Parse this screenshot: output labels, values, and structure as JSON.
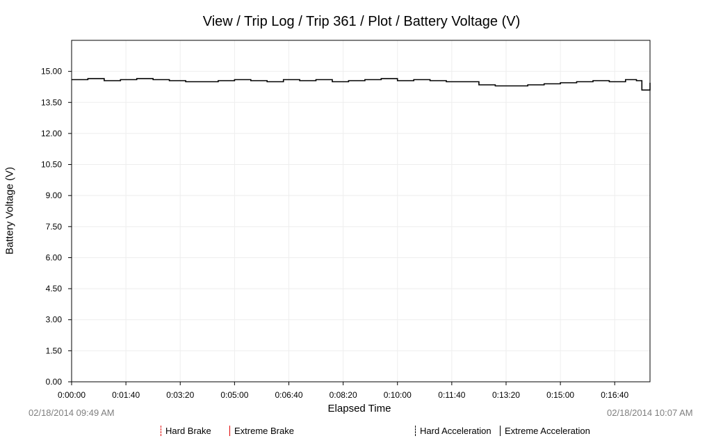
{
  "chart_data": {
    "type": "line",
    "title": "View / Trip Log / Trip 361 / Plot / Battery Voltage (V)",
    "xlabel": "Elapsed Time",
    "ylabel": "Battery Voltage (V)",
    "ylim": [
      0,
      16.5
    ],
    "xlim_seconds": [
      0,
      1065
    ],
    "grid": true,
    "y_ticks": [
      "0.00",
      "1.50",
      "3.00",
      "4.50",
      "6.00",
      "7.50",
      "9.00",
      "10.50",
      "12.00",
      "13.50",
      "15.00"
    ],
    "x_ticks": [
      "0:00:00",
      "0:01:40",
      "0:03:20",
      "0:05:00",
      "0:06:40",
      "0:08:20",
      "0:10:00",
      "0:11:40",
      "0:13:20",
      "0:15:00",
      "0:16:40"
    ],
    "series": [
      {
        "color": "#000000",
        "x": [
          0,
          30,
          60,
          90,
          120,
          150,
          180,
          210,
          240,
          270,
          300,
          330,
          360,
          390,
          420,
          450,
          480,
          510,
          540,
          570,
          600,
          630,
          660,
          690,
          720,
          750,
          780,
          810,
          840,
          870,
          900,
          930,
          960,
          990,
          1020,
          1040,
          1050,
          1065
        ],
        "y": [
          14.6,
          14.65,
          14.55,
          14.6,
          14.65,
          14.6,
          14.55,
          14.5,
          14.5,
          14.55,
          14.6,
          14.55,
          14.5,
          14.6,
          14.55,
          14.6,
          14.5,
          14.55,
          14.6,
          14.65,
          14.55,
          14.6,
          14.55,
          14.5,
          14.5,
          14.35,
          14.3,
          14.3,
          14.35,
          14.4,
          14.45,
          14.5,
          14.55,
          14.5,
          14.6,
          14.55,
          14.1,
          14.45
        ]
      }
    ]
  },
  "start_time": "02/18/2014 09:49 AM",
  "end_time": "02/18/2014 10:07 AM",
  "legend": {
    "hard_brake": "Hard Brake",
    "extreme_brake": "Extreme Brake",
    "hard_acceleration": "Hard Acceleration",
    "extreme_acceleration": "Extreme Acceleration"
  },
  "colors": {
    "brake": "#e00000",
    "acceleration": "#000000",
    "grid": "#eeeeee"
  }
}
